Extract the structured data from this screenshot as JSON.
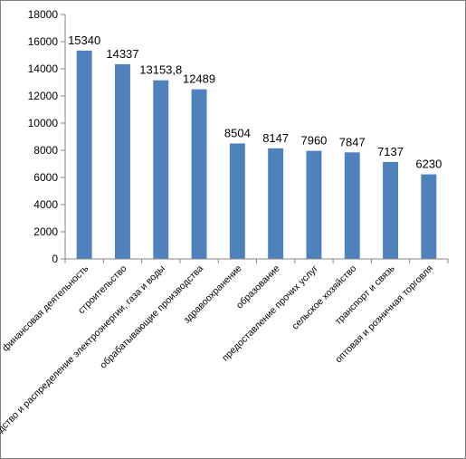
{
  "chart_data": {
    "type": "bar",
    "title": "",
    "xlabel": "",
    "ylabel": "",
    "categories": [
      "финансовая деятельность",
      "строительство",
      "производство и распределение электроэнергии, газа и воды",
      "обрабатывающие производства",
      "здравоохранение",
      "образование",
      "предоставление прочих услуг",
      "сельское хозяйство",
      "транспорт и связь",
      "оптовая и розничная торговля"
    ],
    "values": [
      15340,
      14337,
      13153.8,
      12489,
      8504,
      8147,
      7960,
      7847,
      7137,
      6230
    ],
    "data_labels": [
      "15340",
      "14337",
      "13153,8",
      "12489",
      "8504",
      "8147",
      "7960",
      "7847",
      "7137",
      "6230"
    ],
    "ylim": [
      0,
      18000
    ],
    "yticks": [
      0,
      2000,
      4000,
      6000,
      8000,
      10000,
      12000,
      14000,
      16000,
      18000
    ],
    "grid": false,
    "legend": "none",
    "bar_color": "#4f81bd"
  }
}
